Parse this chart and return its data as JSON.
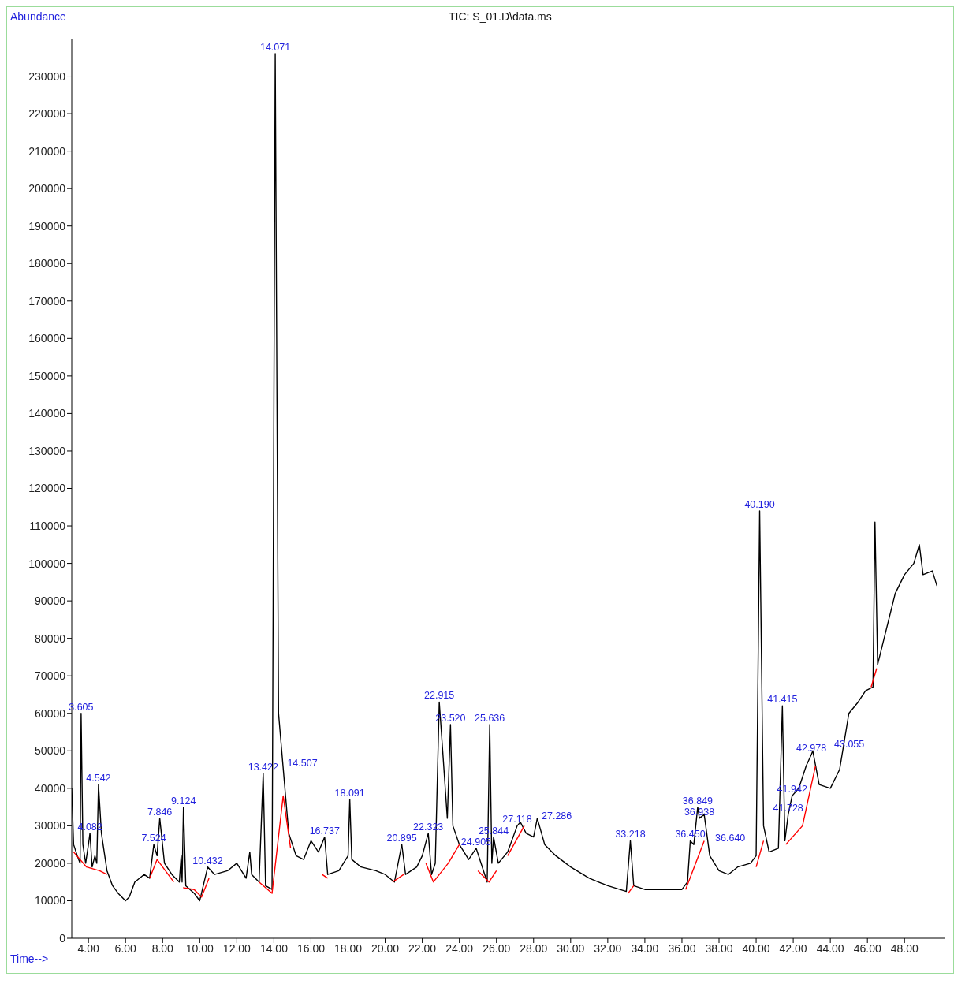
{
  "chart_data": {
    "type": "line",
    "title": "TIC: S_01.D\\data.ms",
    "xlabel": "Time-->",
    "ylabel": "Abundance",
    "xlim": [
      3.1,
      50.2
    ],
    "ylim": [
      0,
      240000
    ],
    "xticks": [
      {
        "value": 4,
        "label": "4.00"
      },
      {
        "value": 6,
        "label": "6.00"
      },
      {
        "value": 8,
        "label": "8.00"
      },
      {
        "value": 10,
        "label": "10.00"
      },
      {
        "value": 12,
        "label": "12.00"
      },
      {
        "value": 14,
        "label": "14.00"
      },
      {
        "value": 16,
        "label": "16.00"
      },
      {
        "value": 18,
        "label": "18.00"
      },
      {
        "value": 20,
        "label": "20.00"
      },
      {
        "value": 22,
        "label": "22.00"
      },
      {
        "value": 24,
        "label": "24.00"
      },
      {
        "value": 26,
        "label": "26.00"
      },
      {
        "value": 28,
        "label": "28.00"
      },
      {
        "value": 30,
        "label": "30.00"
      },
      {
        "value": 32,
        "label": "32.00"
      },
      {
        "value": 34,
        "label": "34.00"
      },
      {
        "value": 36,
        "label": "36.00"
      },
      {
        "value": 38,
        "label": "38.00"
      },
      {
        "value": 40,
        "label": "40.00"
      },
      {
        "value": 42,
        "label": "42.00"
      },
      {
        "value": 44,
        "label": "44.00"
      },
      {
        "value": 46,
        "label": "46.00"
      },
      {
        "value": 48,
        "label": "48.00"
      }
    ],
    "yticks": [
      0,
      10000,
      20000,
      30000,
      40000,
      50000,
      60000,
      70000,
      80000,
      90000,
      100000,
      110000,
      120000,
      130000,
      140000,
      150000,
      160000,
      170000,
      180000,
      190000,
      200000,
      210000,
      220000,
      230000
    ],
    "grid": false,
    "marker": "none",
    "line_style": "solid",
    "annotations": [
      {
        "text": "3.605",
        "x": 3.605,
        "y": 60000
      },
      {
        "text": "4.082",
        "x": 4.082,
        "y": 28000
      },
      {
        "text": "4.542",
        "x": 4.542,
        "y": 41000
      },
      {
        "text": "7.524",
        "x": 7.524,
        "y": 25000
      },
      {
        "text": "7.846",
        "x": 7.846,
        "y": 32000
      },
      {
        "text": "9.124",
        "x": 9.124,
        "y": 35000
      },
      {
        "text": "10.432",
        "x": 10.432,
        "y": 19000
      },
      {
        "text": "13.422",
        "x": 13.422,
        "y": 44000
      },
      {
        "text": "14.071",
        "x": 14.071,
        "y": 236000
      },
      {
        "text": "14.507",
        "x": 14.507,
        "y": 45000
      },
      {
        "text": "16.737",
        "x": 16.737,
        "y": 27000
      },
      {
        "text": "18.091",
        "x": 18.091,
        "y": 37000
      },
      {
        "text": "20.895",
        "x": 20.895,
        "y": 25000
      },
      {
        "text": "22.323",
        "x": 22.323,
        "y": 28000
      },
      {
        "text": "22.915",
        "x": 22.915,
        "y": 63000
      },
      {
        "text": "23.520",
        "x": 23.52,
        "y": 57000
      },
      {
        "text": "24.905",
        "x": 24.905,
        "y": 24000
      },
      {
        "text": "25.636",
        "x": 25.636,
        "y": 57000
      },
      {
        "text": "25.844",
        "x": 25.844,
        "y": 27000
      },
      {
        "text": "27.118",
        "x": 27.118,
        "y": 30000
      },
      {
        "text": "27.286",
        "x": 27.286,
        "y": 31000
      },
      {
        "text": "33.218",
        "x": 33.218,
        "y": 26000
      },
      {
        "text": "36.450",
        "x": 36.45,
        "y": 26000
      },
      {
        "text": "36.640",
        "x": 36.64,
        "y": 25000
      },
      {
        "text": "36.849",
        "x": 36.849,
        "y": 35000
      },
      {
        "text": "36.938",
        "x": 36.938,
        "y": 32000
      },
      {
        "text": "40.190",
        "x": 40.19,
        "y": 114000
      },
      {
        "text": "41.415",
        "x": 41.415,
        "y": 62000
      },
      {
        "text": "41.728",
        "x": 41.728,
        "y": 33000
      },
      {
        "text": "41.942",
        "x": 41.942,
        "y": 38000
      },
      {
        "text": "42.978",
        "x": 42.978,
        "y": 49000
      },
      {
        "text": "43.055",
        "x": 43.055,
        "y": 50000
      }
    ],
    "series": [
      {
        "color": "#000000",
        "x": [
          3.1,
          3.2,
          3.4,
          3.55,
          3.605,
          3.7,
          3.85,
          4.0,
          4.082,
          4.2,
          4.35,
          4.45,
          4.542,
          4.7,
          5.0,
          5.3,
          5.6,
          6.0,
          6.2,
          6.5,
          7.0,
          7.3,
          7.524,
          7.7,
          7.846,
          8.1,
          8.5,
          8.9,
          9.0,
          9.05,
          9.124,
          9.25,
          9.7,
          10.0,
          10.432,
          10.8,
          11.5,
          12.0,
          12.5,
          12.7,
          12.8,
          13.2,
          13.422,
          13.55,
          13.9,
          14.071,
          14.25,
          14.507,
          14.8,
          15.2,
          15.6,
          16.0,
          16.4,
          16.737,
          16.9,
          17.5,
          18.0,
          18.091,
          18.2,
          18.7,
          19.5,
          20.0,
          20.5,
          20.895,
          21.1,
          21.7,
          22.0,
          22.323,
          22.5,
          22.7,
          22.915,
          23.1,
          23.35,
          23.52,
          23.65,
          24.0,
          24.5,
          24.905,
          25.3,
          25.5,
          25.636,
          25.75,
          25.844,
          26.1,
          26.6,
          27.118,
          27.286,
          27.6,
          28.0,
          28.2,
          28.6,
          29.2,
          30.0,
          31.0,
          32.0,
          33.0,
          33.218,
          33.4,
          34.0,
          35.0,
          36.0,
          36.3,
          36.45,
          36.64,
          36.849,
          36.938,
          37.2,
          37.5,
          38.0,
          38.5,
          39.0,
          39.7,
          40.0,
          40.19,
          40.4,
          40.7,
          41.2,
          41.415,
          41.55,
          41.728,
          41.942,
          42.3,
          42.7,
          42.978,
          43.055,
          43.4,
          44.0,
          44.5,
          45.0,
          45.5,
          45.9,
          46.3,
          46.407,
          46.55,
          47.0,
          47.5,
          48.0,
          48.5,
          48.8,
          49.0,
          49.5,
          49.75
        ],
        "values": [
          40000,
          25000,
          22000,
          20000,
          60000,
          25000,
          20000,
          25000,
          28000,
          19000,
          22000,
          20000,
          41000,
          28000,
          18000,
          14000,
          12000,
          10000,
          11000,
          15000,
          17000,
          16000,
          25000,
          22000,
          32000,
          20000,
          17000,
          15000,
          22000,
          15000,
          35000,
          14000,
          12000,
          10000,
          19000,
          17000,
          18000,
          20000,
          16000,
          23000,
          17000,
          15000,
          44000,
          14000,
          13000,
          236000,
          60000,
          45000,
          28000,
          22000,
          21000,
          26000,
          23000,
          27000,
          17000,
          18000,
          22000,
          37000,
          21000,
          19000,
          18000,
          17000,
          15000,
          25000,
          17000,
          19000,
          22000,
          28000,
          17000,
          20000,
          63000,
          50000,
          32000,
          57000,
          30000,
          25000,
          21000,
          24000,
          18000,
          15000,
          57000,
          20000,
          27000,
          20000,
          23000,
          30000,
          31000,
          28000,
          27000,
          32000,
          25000,
          22000,
          19000,
          16000,
          14000,
          12500,
          26000,
          14000,
          13000,
          13000,
          13000,
          15000,
          26000,
          25000,
          35000,
          32000,
          33000,
          22000,
          18000,
          17000,
          19000,
          20000,
          22000,
          114000,
          30000,
          23000,
          24000,
          62000,
          26000,
          33000,
          38000,
          40000,
          46000,
          49000,
          50000,
          41000,
          40000,
          45000,
          60000,
          63000,
          66000,
          67000,
          111000,
          73000,
          82000,
          92000,
          97000,
          100000,
          105000,
          97000,
          98000,
          94000
        ]
      },
      {
        "color": "#ff0000",
        "x": [
          3.2,
          3.9,
          4.6,
          5.0,
          5.05,
          7.3,
          7.7,
          8.6,
          8.65,
          9.1,
          9.7,
          10.1,
          10.5,
          10.55,
          13.2,
          13.9,
          14.5,
          14.9,
          14.95,
          16.6,
          16.9,
          16.95,
          20.4,
          21.0,
          21.05,
          22.2,
          22.6,
          23.4,
          24.0,
          24.05,
          25.0,
          25.6,
          26.0,
          26.05,
          26.6,
          27.5,
          27.55,
          33.1,
          33.4,
          33.45,
          36.2,
          37.2,
          37.25,
          40.0,
          40.4,
          40.45,
          41.6,
          42.5,
          43.2,
          43.25,
          46.2,
          46.5
        ],
        "values": [
          23000,
          19000,
          18000,
          17000,
          null,
          16000,
          21000,
          15000,
          null,
          13500,
          13000,
          11000,
          16000,
          null,
          15000,
          12000,
          38000,
          24000,
          null,
          17000,
          16000,
          null,
          15000,
          17000,
          null,
          20000,
          15000,
          20000,
          25000,
          null,
          18000,
          15000,
          18000,
          null,
          22000,
          30000,
          null,
          12000,
          14000,
          null,
          13000,
          26000,
          null,
          19000,
          26000,
          null,
          25000,
          30000,
          46000,
          null,
          67000,
          72000
        ]
      }
    ]
  }
}
